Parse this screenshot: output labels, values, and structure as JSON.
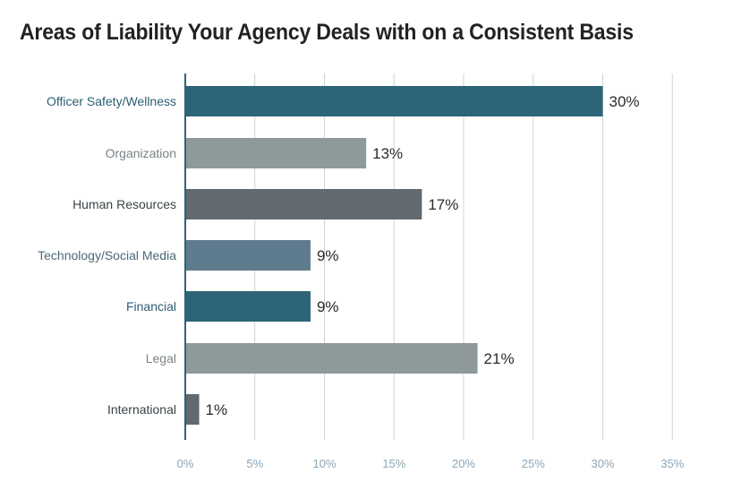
{
  "chart_data": {
    "type": "bar",
    "orientation": "horizontal",
    "title": "Areas of Liability Your Agency Deals with on a Consistent Basis",
    "categories": [
      "Officer Safety/Wellness",
      "Organization",
      "Human Resources",
      "Technology/Social Media",
      "Financial",
      "Legal",
      "International"
    ],
    "values": [
      30,
      13,
      17,
      9,
      9,
      21,
      1
    ],
    "value_labels": [
      "30%",
      "13%",
      "17%",
      "9%",
      "9%",
      "21%",
      "1%"
    ],
    "colors": [
      "#2d6478",
      "#8e999c",
      "#606a6f",
      "#5f7c8e",
      "#2d6478",
      "#8e999c",
      "#606a6f"
    ],
    "category_label_colors": [
      "#2d5e73",
      "#7a8286",
      "#3c4448",
      "#4a6878",
      "#2d5e73",
      "#7a8286",
      "#3c4448"
    ],
    "xlim": [
      0,
      35
    ],
    "xticks": [
      0,
      5,
      10,
      15,
      20,
      25,
      30,
      35
    ],
    "xtick_labels": [
      "0%",
      "5%",
      "10%",
      "15%",
      "20%",
      "25%",
      "30%",
      "35%"
    ],
    "xlabel": "",
    "ylabel": "",
    "grid": "vertical",
    "gridline_color": "#cfd3d6",
    "axis_color": "#2d6478",
    "tick_label_color": "#8ba6b8"
  }
}
